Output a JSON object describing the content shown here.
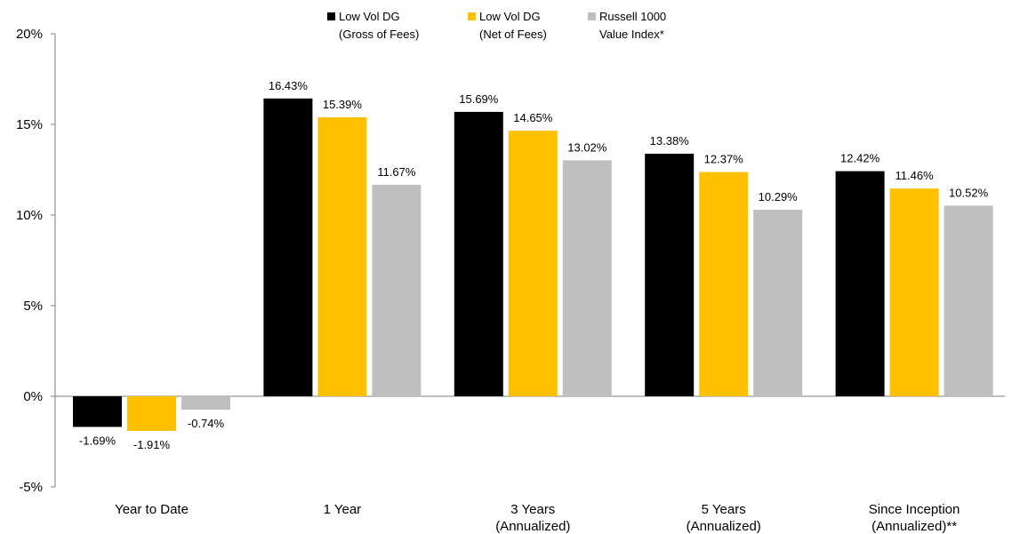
{
  "chart_data": {
    "type": "bar",
    "categories": [
      [
        "Year to Date"
      ],
      [
        "1 Year"
      ],
      [
        "3 Years",
        "(Annualized)"
      ],
      [
        "5 Years",
        "(Annualized)"
      ],
      [
        "Since Inception",
        "(Annualized)**"
      ]
    ],
    "series": [
      {
        "name": [
          "Low Vol DG",
          "(Gross of Fees)"
        ],
        "color": "#000000",
        "values": [
          -1.69,
          16.43,
          15.69,
          13.38,
          12.42
        ],
        "labels": [
          "-1.69%",
          "16.43%",
          "15.69%",
          "13.38%",
          "12.42%"
        ]
      },
      {
        "name": [
          "Low Vol DG",
          "(Net of Fees)"
        ],
        "color": "#FFC000",
        "values": [
          -1.91,
          15.39,
          14.65,
          12.37,
          11.46
        ],
        "labels": [
          "-1.91%",
          "15.39%",
          "14.65%",
          "12.37%",
          "11.46%"
        ]
      },
      {
        "name": [
          "Russell 1000",
          "Value Index*"
        ],
        "color": "#BFBFBF",
        "values": [
          -0.74,
          11.67,
          13.02,
          10.29,
          10.52
        ],
        "labels": [
          "-0.74%",
          "11.67%",
          "13.02%",
          "10.29%",
          "10.52%"
        ]
      }
    ],
    "yticks": [
      20,
      15,
      10,
      5,
      0,
      -5
    ],
    "ytick_labels": [
      "20%",
      "15%",
      "10%",
      "5%",
      "0%",
      "-5%"
    ],
    "ylim": [
      -5,
      20
    ],
    "grid": false,
    "legend_position": "top"
  }
}
